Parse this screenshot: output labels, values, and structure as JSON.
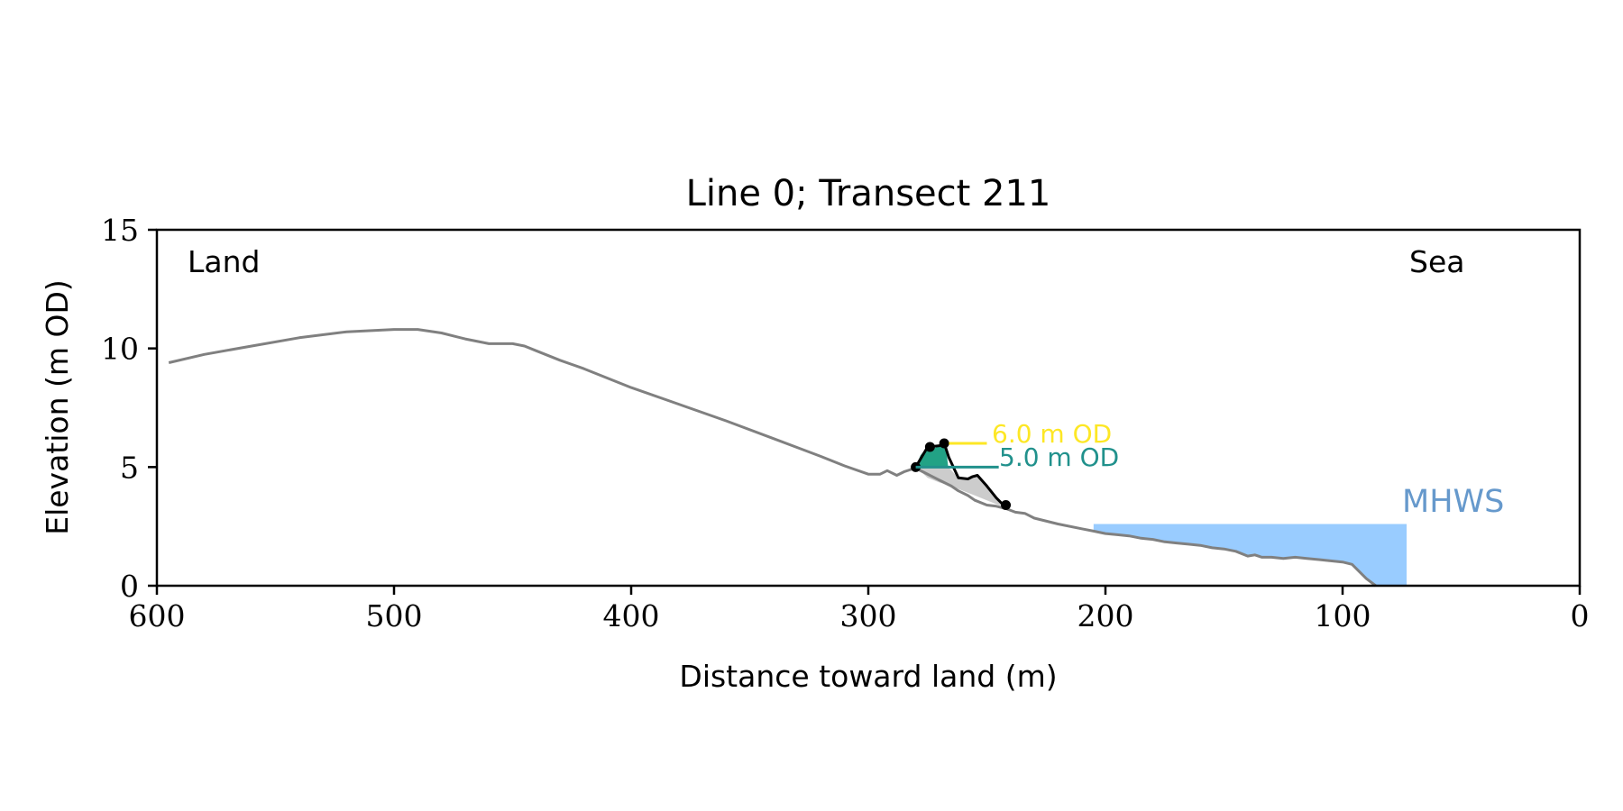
{
  "chart_data": {
    "type": "line",
    "title": "Line 0; Transect 211",
    "xlabel": "Distance toward land (m)",
    "ylabel": "Elevation (m OD)",
    "xlim": [
      600,
      0
    ],
    "ylim": [
      0,
      15
    ],
    "x_ticks": [
      600,
      500,
      400,
      300,
      200,
      100,
      0
    ],
    "x_tick_labels": [
      "600",
      "500",
      "400",
      "300",
      "200",
      "100",
      "0"
    ],
    "y_ticks": [
      0,
      5,
      10,
      15
    ],
    "y_tick_labels": [
      "0",
      "5",
      "10",
      "15"
    ],
    "grid": false,
    "legend": "none",
    "annotations": {
      "land": "Land",
      "sea": "Sea",
      "mhws": "MHWS",
      "level_6": "6.0 m OD",
      "level_5": "5.0 m OD"
    },
    "profile": {
      "x": [
        595,
        580,
        560,
        540,
        520,
        500,
        490,
        480,
        470,
        460,
        450,
        445,
        440,
        430,
        420,
        400,
        380,
        360,
        340,
        320,
        310,
        300,
        295,
        292,
        288,
        285,
        282,
        280,
        276,
        272,
        268,
        265,
        262,
        258,
        255,
        250,
        246,
        242,
        238,
        234,
        230,
        220,
        210,
        205,
        200,
        195,
        190,
        185,
        180,
        175,
        170,
        165,
        160,
        155,
        150,
        145,
        140,
        137,
        134,
        130,
        125,
        120,
        115,
        110,
        105,
        100,
        96,
        93,
        90,
        86
      ],
      "y": [
        9.4,
        9.75,
        10.1,
        10.45,
        10.7,
        10.8,
        10.8,
        10.65,
        10.4,
        10.2,
        10.2,
        10.1,
        9.9,
        9.5,
        9.15,
        8.35,
        7.65,
        6.95,
        6.2,
        5.45,
        5.05,
        4.7,
        4.7,
        4.85,
        4.65,
        4.8,
        4.9,
        4.95,
        4.75,
        4.55,
        4.35,
        4.2,
        4.0,
        3.8,
        3.6,
        3.4,
        3.35,
        3.25,
        3.1,
        3.05,
        2.85,
        2.6,
        2.4,
        2.3,
        2.2,
        2.15,
        2.1,
        2.0,
        1.95,
        1.85,
        1.8,
        1.75,
        1.7,
        1.6,
        1.55,
        1.45,
        1.25,
        1.3,
        1.2,
        1.2,
        1.15,
        1.2,
        1.15,
        1.1,
        1.05,
        1.0,
        0.9,
        0.6,
        0.3,
        0.0
      ],
      "color": "#808080"
    },
    "dune_toe": {
      "x": [
        280,
        275,
        270,
        268,
        266,
        262,
        258,
        256,
        254,
        250,
        246,
        243,
        242
      ],
      "y": [
        5.0,
        5.85,
        5.9,
        6.0,
        5.4,
        4.55,
        4.5,
        4.6,
        4.65,
        4.2,
        3.7,
        3.4,
        3.4
      ],
      "color": "#000000",
      "points_x": [
        280,
        274,
        268,
        242
      ],
      "points_y": [
        5.0,
        5.85,
        6.0,
        3.4
      ]
    },
    "volume_above_5m": {
      "x": [
        280,
        278,
        275,
        272,
        269,
        268,
        267,
        266.3
      ],
      "y": [
        5.0,
        5.5,
        5.85,
        5.8,
        5.95,
        6.0,
        5.6,
        5.0
      ],
      "color": "#22a285"
    },
    "volume_below_5m": {
      "x": [
        280,
        266.3,
        262,
        258,
        256,
        254,
        250,
        246,
        243,
        245,
        250,
        255,
        260,
        265,
        270,
        275,
        280
      ],
      "y": [
        5.0,
        5.0,
        4.55,
        4.5,
        4.6,
        4.65,
        4.2,
        3.7,
        3.4,
        3.4,
        3.6,
        3.8,
        4.0,
        4.2,
        4.35,
        4.55,
        5.0
      ],
      "color": "#cccccc"
    },
    "level_lines": [
      {
        "label": "6.0 m OD",
        "y": 6.0,
        "x_start": 266,
        "x_end": 250,
        "color": "#fde725"
      },
      {
        "label": "5.0 m OD",
        "y": 5.0,
        "x_start": 280,
        "x_end": 245,
        "color": "#21918c"
      }
    ],
    "mhws": {
      "label": "MHWS",
      "level": 2.6,
      "x_land": 205,
      "x_sea": 73,
      "fill_color": "#99ccff",
      "label_color": "#6699cc"
    }
  }
}
